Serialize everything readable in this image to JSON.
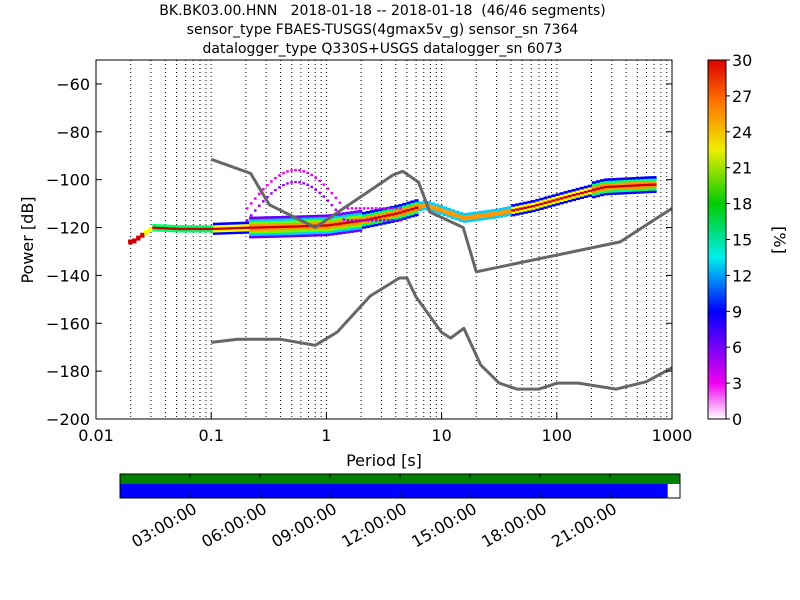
{
  "title_lines": [
    "BK.BK03.00.HNN   2018-01-18 -- 2018-01-18  (46/46 segments)",
    "sensor_type FBAES-TUSGS(4gmax5v_g) sensor_sn 7364",
    "datalogger_type Q330S+USGS datalogger_sn 6073"
  ],
  "chart_data": {
    "type": "heatmap",
    "xlabel": "Period [s]",
    "ylabel": "Power [dB]",
    "x_scale": "log",
    "xlim": [
      0.01,
      1000
    ],
    "ylim": [
      -200,
      -50
    ],
    "x_ticks": [
      0.01,
      0.1,
      1,
      10,
      100,
      1000
    ],
    "x_tick_labels": [
      "0.01",
      "0.1",
      "1",
      "10",
      "100",
      "1000"
    ],
    "y_ticks": [
      -200,
      -180,
      -160,
      -140,
      -120,
      -100,
      -80,
      -60
    ],
    "y_tick_labels": [
      "−200",
      "−180",
      "−160",
      "−140",
      "−120",
      "−100",
      "−80",
      "−60"
    ],
    "grid": "vertical dotted",
    "colorbar": {
      "label": "[%]",
      "range": [
        0,
        30
      ],
      "ticks": [
        0,
        3,
        6,
        9,
        12,
        15,
        18,
        21,
        24,
        27,
        30
      ],
      "tick_labels": [
        "0",
        "3",
        "6",
        "9",
        "12",
        "15",
        "18",
        "21",
        "24",
        "27",
        "30"
      ],
      "colormap": "pqlx"
    },
    "noise_models": [
      {
        "name": "NHNM",
        "color": "#666666",
        "x": [
          0.1,
          0.22,
          0.32,
          0.8,
          3.8,
          4.6,
          6.3,
          7.9,
          15.4,
          20,
          354.8,
          1000
        ],
        "y": [
          -91.5,
          -97.4,
          -110.5,
          -120,
          -98,
          -96.5,
          -101,
          -113.5,
          -120,
          -138.5,
          -126,
          -112
        ]
      },
      {
        "name": "NLNM",
        "color": "#666666",
        "x": [
          0.1,
          0.17,
          0.4,
          0.8,
          1.24,
          2.4,
          4.3,
          5,
          6,
          10,
          12,
          15.6,
          21.9,
          31.6,
          45,
          70,
          101,
          154,
          328,
          600,
          1000
        ],
        "y": [
          -168,
          -166.7,
          -166.7,
          -169.2,
          -163.7,
          -148.6,
          -141.1,
          -141.1,
          -149,
          -163.8,
          -166.2,
          -162.1,
          -177.5,
          -185,
          -187.5,
          -187.5,
          -185,
          -185,
          -187.5,
          -184.4,
          -178.6
        ]
      }
    ],
    "psd_mode": {
      "x": [
        0.02,
        0.03,
        0.05,
        0.1,
        0.2,
        0.5,
        1,
        2,
        4,
        7,
        10,
        15,
        30,
        60,
        120,
        250,
        650
      ],
      "y": [
        -126,
        -120,
        -120.5,
        -120.5,
        -120,
        -119.5,
        -119,
        -117,
        -114,
        -110.5,
        -113,
        -116,
        -114,
        -111,
        -107,
        -103,
        -102
      ]
    },
    "timeline": {
      "tick_labels": [
        "03:00:00",
        "06:00:00",
        "09:00:00",
        "12:00:00",
        "15:00:00",
        "18:00:00",
        "21:00:00"
      ],
      "data_coverage_fraction": 0.978,
      "colors": {
        "coverage": "#008000",
        "used": "#0000ff"
      }
    }
  }
}
